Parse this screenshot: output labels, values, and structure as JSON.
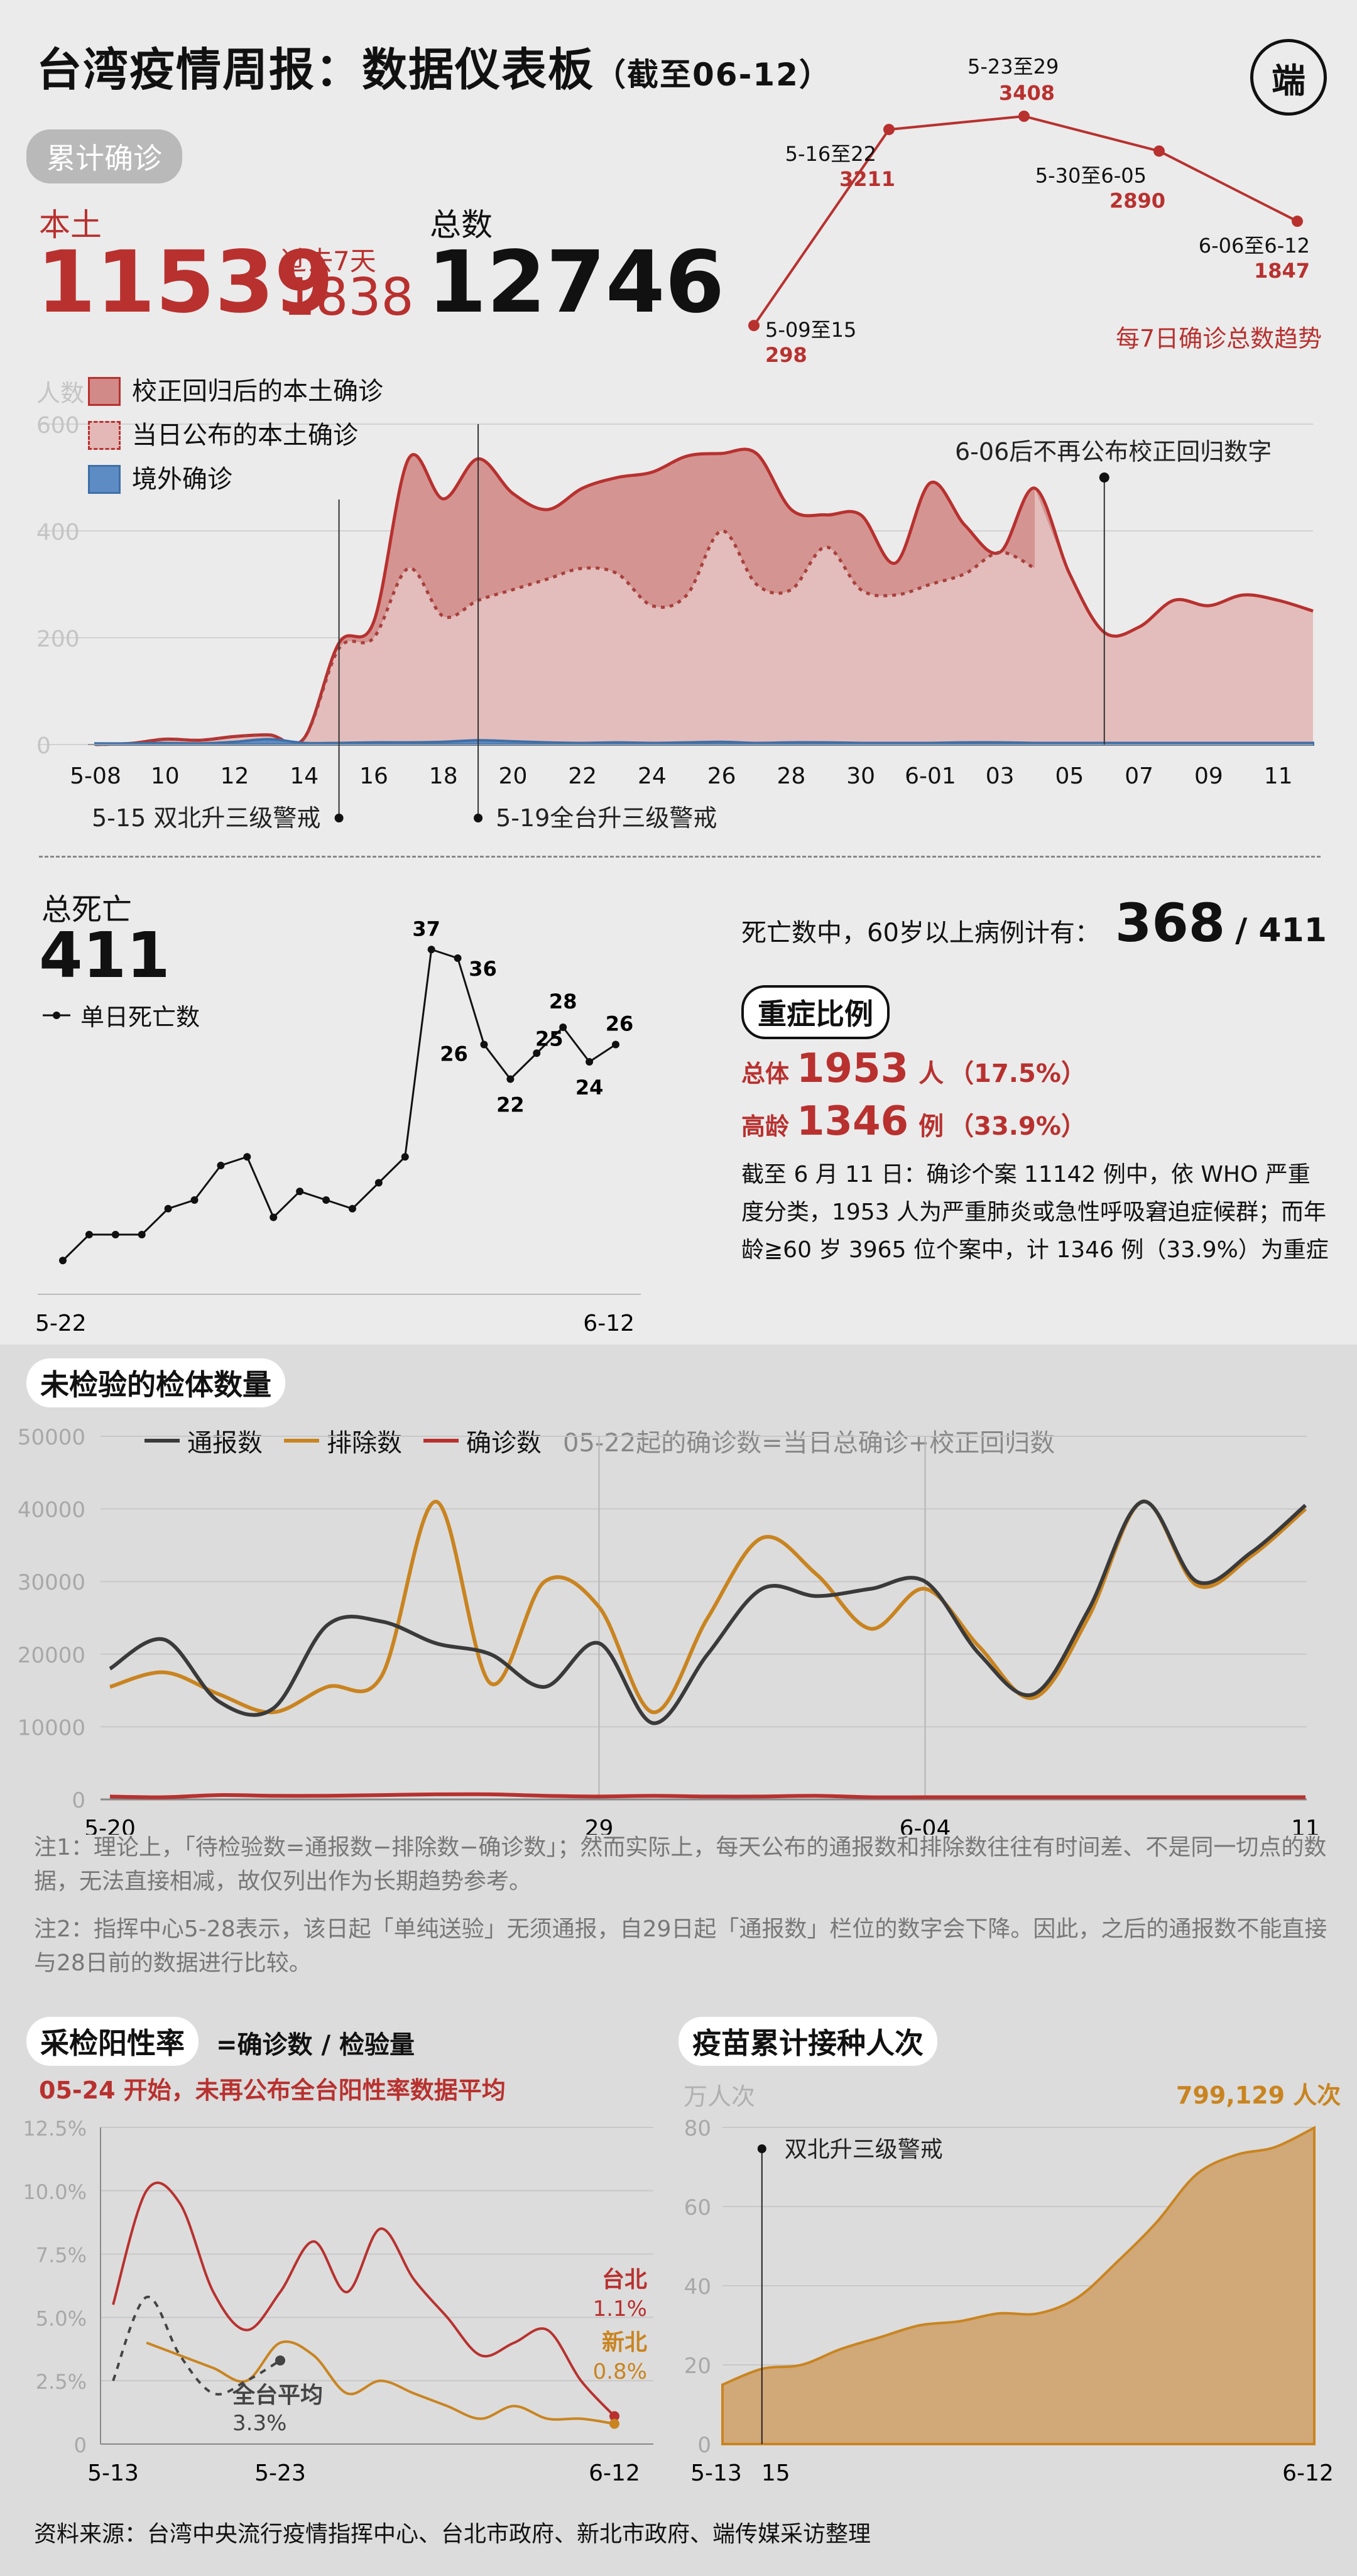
{
  "header": {
    "title": "台湾疫情周报：数据仪表板",
    "subtitle": "（截至06-12）",
    "logo_text": "端"
  },
  "cumulative": {
    "pill": "累计确诊",
    "local_label": "本土",
    "local_value": "11539",
    "past7_label": "过去7天",
    "past7_value": "1838",
    "total_label": "总数",
    "total_value": "12746"
  },
  "weekly_trend": {
    "caption": "每7日确诊总数趋势",
    "points": [
      {
        "label": "5-09至15",
        "value": 298
      },
      {
        "label": "5-16至22",
        "value": 3211
      },
      {
        "label": "5-23至29",
        "value": 3408
      },
      {
        "label": "5-30至6-05",
        "value": 2890
      },
      {
        "label": "6-06至6-12",
        "value": 1847
      }
    ]
  },
  "daily_cases": {
    "y_unit": "人数",
    "legend": [
      "校正回归后的本土确诊",
      "当日公布的本土确诊",
      "境外确诊"
    ],
    "y_ticks": [
      "0",
      "200",
      "400",
      "600"
    ],
    "x_ticks": [
      "5-08",
      "10",
      "12",
      "14",
      "16",
      "18",
      "20",
      "22",
      "24",
      "26",
      "28",
      "30",
      "6-01",
      "03",
      "05",
      "07",
      "09",
      "11"
    ],
    "annotations": [
      "5-15 双北升三级警戒",
      "5-19全台升三级警戒",
      "6-06后不再公布校正回归数字"
    ],
    "colors": {
      "corrected": "#b8312f",
      "announced": "#a8403d",
      "imported": "#3e6fa8"
    }
  },
  "deaths": {
    "label": "总死亡",
    "total": "411",
    "legend": "单日死亡数",
    "x_start": "5-22",
    "x_end": "6-12",
    "over60_text": "死亡数中，60岁以上病例计有：",
    "over60_value": "368",
    "over60_total": "/ 411"
  },
  "severe": {
    "pill": "重症比例",
    "total_label": "总体",
    "total_value": "1953",
    "total_unit": "人",
    "total_pct": "（17.5%）",
    "elder_label": "高龄",
    "elder_value": "1346",
    "elder_unit": "例",
    "elder_pct": "（33.9%）",
    "note": "截至 6 月 11 日：确诊个案 11142 例中，依 WHO 严重度分类，1953 人为严重肺炎或急性呼吸窘迫症候群；而年龄≧60 岁 3965 位个案中，计 1346 例（33.9%）为重症"
  },
  "pending_tests": {
    "pill": "未检验的检体数量",
    "legend": [
      "通报数",
      "排除数",
      "确诊数"
    ],
    "legend_note": "05-22起的确诊数=当日总确诊+校正回归数",
    "y_ticks": [
      "0",
      "10000",
      "20000",
      "30000",
      "40000",
      "50000"
    ],
    "x_ticks": [
      "5-20",
      "29",
      "6-04",
      "11"
    ],
    "note1": "注1：理论上，「待检验数=通报数−排除数−确诊数」；然而实际上，每天公布的通报数和排除数往往有时间差、不是同一切点的数据，无法直接相减，故仅列出作为长期趋势参考。",
    "note2": "注2：指挥中心5-28表示，该日起「单纯送验」无须通报，自29日起「通报数」栏位的数字会下降。因此，之后的通报数不能直接与28日前的数据进行比较。",
    "colors": {
      "reported": "#3a3a3a",
      "excluded": "#c98420",
      "confirmed": "#b8312f"
    }
  },
  "positivity": {
    "pill": "采检阳性率",
    "formula": "=确诊数 / 检验量",
    "warning": "05-24 开始，未再公布全台阳性率数据平均",
    "y_ticks": [
      "0",
      "2.5%",
      "5.0%",
      "7.5%",
      "10.0%",
      "12.5%"
    ],
    "x_ticks": [
      "5-13",
      "5-23",
      "6-12"
    ],
    "taipei_label": "台北",
    "taipei_value": "1.1%",
    "newtaipei_label": "新北",
    "newtaipei_value": "0.8%",
    "national_label": "全台平均",
    "national_value": "3.3%"
  },
  "vaccine": {
    "pill": "疫苗累计接种人次",
    "y_unit": "万人次",
    "y_ticks": [
      "0",
      "20",
      "40",
      "60",
      "80"
    ],
    "x_ticks": [
      "5-13",
      "15",
      "6-12"
    ],
    "annotation": "双北升三级警戒",
    "end_value": "799,129 人次",
    "color": "#c98420"
  },
  "source": "资料来源：台湾中央流行疫情指挥中心、台北市政府、新北市政府、端传媒采访整理",
  "chart_data": [
    {
      "type": "line",
      "title": "每7日确诊总数趋势",
      "categories": [
        "5-09至15",
        "5-16至22",
        "5-23至29",
        "5-30至6-05",
        "6-06至6-12"
      ],
      "values": [
        298,
        3211,
        3408,
        2890,
        1847
      ]
    },
    {
      "type": "area",
      "ylabel": "人数",
      "ylim": [
        0,
        600
      ],
      "x": [
        "5-08",
        "5-09",
        "5-10",
        "5-11",
        "5-12",
        "5-13",
        "5-14",
        "5-15",
        "5-16",
        "5-17",
        "5-18",
        "5-19",
        "5-20",
        "5-21",
        "5-22",
        "5-23",
        "5-24",
        "5-25",
        "5-26",
        "5-27",
        "5-28",
        "5-29",
        "5-30",
        "5-31",
        "6-01",
        "6-02",
        "6-03",
        "6-04",
        "6-05",
        "6-06",
        "6-07",
        "6-08",
        "6-09",
        "6-10",
        "6-11",
        "6-12"
      ],
      "series": [
        {
          "name": "校正回归后的本土确诊",
          "values": [
            0,
            2,
            10,
            8,
            15,
            18,
            12,
            190,
            230,
            535,
            460,
            535,
            470,
            440,
            480,
            500,
            510,
            540,
            545,
            545,
            440,
            430,
            430,
            340,
            490,
            410,
            360,
            480,
            320,
            210,
            220,
            270,
            260,
            280,
            270,
            250
          ]
        },
        {
          "name": "当日公布的本土确诊",
          "values": [
            0,
            2,
            10,
            8,
            15,
            18,
            12,
            180,
            200,
            330,
            240,
            270,
            290,
            310,
            330,
            320,
            260,
            280,
            400,
            300,
            290,
            370,
            290,
            280,
            300,
            320,
            360,
            330,
            null,
            null,
            null,
            null,
            null,
            null,
            null,
            null
          ]
        },
        {
          "name": "境外确诊",
          "values": [
            2,
            2,
            3,
            2,
            5,
            10,
            3,
            3,
            4,
            4,
            5,
            8,
            6,
            4,
            3,
            4,
            3,
            4,
            5,
            3,
            4,
            4,
            3,
            3,
            3,
            4,
            4,
            3,
            3,
            3,
            3,
            3,
            3,
            3,
            3,
            3
          ]
        }
      ]
    },
    {
      "type": "line",
      "title": "单日死亡数",
      "x": [
        "5-22",
        "5-23",
        "5-24",
        "5-25",
        "5-26",
        "5-27",
        "5-28",
        "5-29",
        "5-30",
        "5-31",
        "6-01",
        "6-02",
        "6-03",
        "6-04",
        "6-05",
        "6-06",
        "6-07",
        "6-08",
        "6-09",
        "6-10",
        "6-11",
        "6-12"
      ],
      "values": [
        1,
        4,
        4,
        4,
        7,
        8,
        12,
        13,
        6,
        9,
        8,
        7,
        10,
        13,
        37,
        36,
        26,
        22,
        25,
        28,
        24,
        26
      ],
      "ylim": [
        0,
        40
      ]
    },
    {
      "type": "line",
      "ylim": [
        0,
        50000
      ],
      "x": [
        "5-20",
        "5-21",
        "5-22",
        "5-23",
        "5-24",
        "5-25",
        "5-26",
        "5-27",
        "5-28",
        "5-29",
        "5-30",
        "5-31",
        "6-01",
        "6-02",
        "6-03",
        "6-04",
        "6-05",
        "6-06",
        "6-07",
        "6-08",
        "6-09",
        "6-10",
        "6-11"
      ],
      "series": [
        {
          "name": "通报数",
          "values": [
            18000,
            22000,
            13500,
            12500,
            24000,
            24500,
            21500,
            20000,
            15500,
            21500,
            10500,
            20000,
            29000,
            28000,
            29000,
            30000,
            20000,
            14500,
            26000,
            41000,
            30000,
            34000,
            40500
          ]
        },
        {
          "name": "排除数",
          "values": [
            15500,
            17500,
            14500,
            12000,
            15500,
            17000,
            41000,
            16000,
            30000,
            26500,
            12000,
            25000,
            36000,
            31000,
            23500,
            29000,
            21000,
            14000,
            25000,
            41000,
            29500,
            33500,
            40000
          ]
        },
        {
          "name": "确诊数",
          "values": [
            400,
            300,
            600,
            500,
            500,
            600,
            700,
            700,
            500,
            400,
            500,
            400,
            400,
            500,
            300,
            300,
            300,
            300,
            300,
            300,
            300,
            300,
            300
          ]
        }
      ]
    },
    {
      "type": "line",
      "title": "采检阳性率",
      "ylim": [
        0,
        12.5
      ],
      "x": [
        "5-13",
        "5-15",
        "5-17",
        "5-19",
        "5-21",
        "5-23",
        "5-25",
        "5-27",
        "5-29",
        "5-31",
        "6-02",
        "6-04",
        "6-06",
        "6-08",
        "6-10",
        "6-12"
      ],
      "series": [
        {
          "name": "台北",
          "values": [
            5.5,
            10.0,
            9.5,
            6.0,
            4.5,
            6.0,
            8.0,
            6.0,
            8.5,
            6.5,
            5.0,
            3.5,
            4.0,
            4.5,
            2.5,
            1.1
          ]
        },
        {
          "name": "新北",
          "values": [
            null,
            4.0,
            3.5,
            3.0,
            2.5,
            4.0,
            3.5,
            2.0,
            2.5,
            2.0,
            1.5,
            1.0,
            1.5,
            1.0,
            1.0,
            0.8
          ]
        },
        {
          "name": "全台平均",
          "values": [
            2.5,
            5.8,
            3.5,
            2.0,
            2.5,
            3.3,
            null,
            null,
            null,
            null,
            null,
            null,
            null,
            null,
            null,
            null
          ]
        }
      ]
    },
    {
      "type": "area",
      "title": "疫苗累计接种人次",
      "ylabel": "万人次",
      "ylim": [
        0,
        80
      ],
      "x": [
        "5-13",
        "5-15",
        "5-17",
        "5-19",
        "5-21",
        "5-23",
        "5-25",
        "5-27",
        "5-29",
        "5-31",
        "6-02",
        "6-04",
        "6-06",
        "6-08",
        "6-10",
        "6-12"
      ],
      "values": [
        15,
        19,
        20,
        24,
        27,
        30,
        31,
        33,
        33,
        37,
        46,
        56,
        68,
        73,
        75,
        79.9
      ]
    }
  ]
}
